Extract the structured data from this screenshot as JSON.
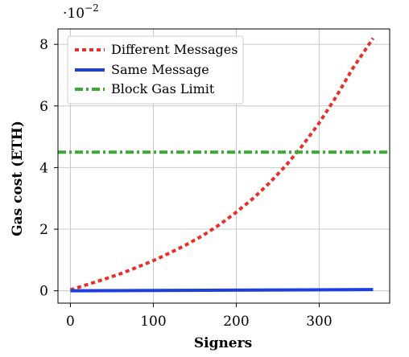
{
  "chart_data": {
    "type": "line",
    "title": "",
    "xlabel": "Signers",
    "ylabel": "Gas cost (ETH)",
    "y_scale_base": "·10",
    "y_scale_exponent": "−2",
    "xlim": [
      -15,
      385
    ],
    "ylim": [
      -0.4,
      8.5
    ],
    "xticks": [
      0,
      100,
      200,
      300
    ],
    "yticks": [
      0,
      2,
      4,
      6,
      8
    ],
    "grid": true,
    "legend_position": "top-left",
    "series": [
      {
        "name": "Different Messages",
        "color": "#e8302a",
        "style": "dotted",
        "x": [
          0,
          20,
          40,
          60,
          80,
          100,
          120,
          140,
          160,
          180,
          200,
          220,
          240,
          260,
          280,
          300,
          320,
          340,
          360,
          365
        ],
        "y": [
          0.03,
          0.2,
          0.37,
          0.55,
          0.76,
          0.98,
          1.23,
          1.5,
          1.8,
          2.15,
          2.55,
          2.99,
          3.5,
          4.07,
          4.72,
          5.45,
          6.28,
          7.2,
          8.0,
          8.2
        ]
      },
      {
        "name": "Same Message",
        "color": "#1f3ee0",
        "style": "solid",
        "x": [
          0,
          365
        ],
        "y": [
          0.0,
          0.04
        ]
      },
      {
        "name": "Block Gas Limit",
        "color": "#3aaa35",
        "style": "dashdot",
        "x": [
          -15,
          385
        ],
        "y": [
          4.5,
          4.5
        ]
      }
    ]
  }
}
